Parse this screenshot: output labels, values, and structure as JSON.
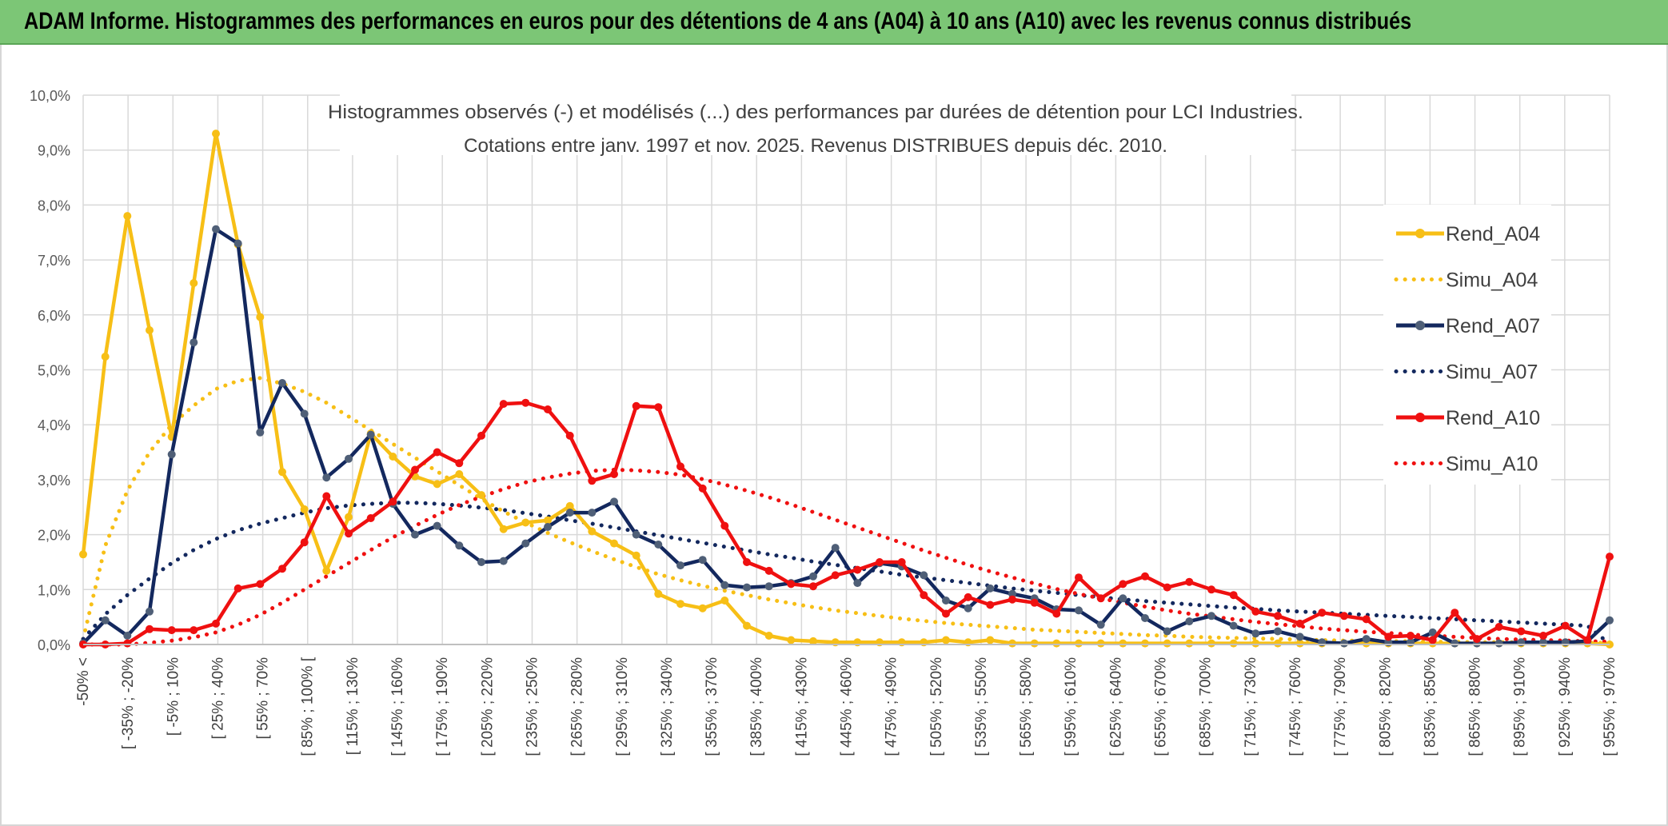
{
  "banner": {
    "title": "ADAM Informe. Histogrammes des performances en euros pour des détentions de 4 ans (A04) à 10 ans (A10) avec les revenus connus distribués"
  },
  "colors": {
    "A04": "#f7bf16",
    "A07": "#13285e",
    "A07_marker": "#4f5f77",
    "A10": "#ef1010",
    "grid": "#d9d9d9",
    "banner": "#7cc676"
  },
  "chart_data": {
    "type": "line",
    "title": "Histogrammes observés (-) et modélisés (...) des performances par durées de détention pour LCI Industries.",
    "subtitle": "Cotations entre janv. 1997 et nov. 2025. Revenus DISTRIBUES depuis déc. 2010.",
    "xlabel": "",
    "ylabel": "",
    "ylim": [
      0,
      0.1
    ],
    "y_ticks": [
      "0,0%",
      "1,0%",
      "2,0%",
      "3,0%",
      "4,0%",
      "5,0%",
      "6,0%",
      "7,0%",
      "8,0%",
      "9,0%",
      "10,0%"
    ],
    "legend_position": "right",
    "grid": true,
    "x_labels": [
      "-50% <",
      "[ -35% ; -20%",
      "[ -5% ; 10%",
      "[ 25% ; 40%",
      "[ 55% ; 70%",
      "[ 85% ; 100% [",
      "[ 115% ; 130%",
      "[ 145% ; 160%",
      "[ 175% ; 190%",
      "[ 205% ; 220%",
      "[ 235% ; 250%",
      "[ 265% ; 280%",
      "[ 295% ; 310%",
      "[ 325% ; 340%",
      "[ 355% ; 370%",
      "[ 385% ; 400%",
      "[ 415% ; 430%",
      "[ 445% ; 460%",
      "[ 475% ; 490%",
      "[ 505% ; 520%",
      "[ 535% ; 550%",
      "[ 565% ; 580%",
      "[ 595% ; 610%",
      "[ 625% ; 640%",
      "[ 655% ; 670%",
      "[ 685% ; 700%",
      "[ 715% ; 730%",
      "[ 745% ; 760%",
      "[ 775% ; 790%",
      "[ 805% ; 820%",
      "[ 835% ; 850%",
      "[ 865% ; 880%",
      "[ 895% ; 910%",
      "[ 925% ; 940%",
      "[ 955% ; 970%"
    ],
    "series": [
      {
        "name": "Rend_A04",
        "style": "solid",
        "color_key": "A04",
        "values": [
          0.0164,
          0.0524,
          0.078,
          0.0572,
          0.0378,
          0.0658,
          0.093,
          0.0728,
          0.0596,
          0.0314,
          0.0246,
          0.0134,
          0.0232,
          0.0384,
          0.0342,
          0.0306,
          0.0292,
          0.031,
          0.0272,
          0.021,
          0.0222,
          0.0226,
          0.0252,
          0.0206,
          0.0184,
          0.0162,
          0.0092,
          0.0074,
          0.0066,
          0.008,
          0.0034,
          0.0016,
          0.0008,
          0.0006,
          0.0004,
          0.0004,
          0.0004,
          0.0004,
          0.0004,
          0.0008,
          0.0004,
          0.0008,
          0.0002,
          0.0002,
          0.0002,
          0.0002,
          0.0002,
          0.0002,
          0.0002,
          0.0002,
          0.0002,
          0.0002,
          0.0002,
          0.0002,
          0.0002,
          0.0002,
          0.0002,
          0.0002,
          0.0002,
          0.0002,
          0.0002,
          0.0002,
          0.0002,
          0.0002,
          0.0002,
          0.0002,
          0.0002,
          0.0002,
          0.0002,
          0.0
        ]
      },
      {
        "name": "Simu_A04",
        "style": "dotted",
        "color_key": "A04",
        "values": [
          0.001,
          0.018,
          0.028,
          0.035,
          0.04,
          0.0435,
          0.0465,
          0.048,
          0.0485,
          0.0475,
          0.046,
          0.044,
          0.0415,
          0.039,
          0.0365,
          0.034,
          0.0315,
          0.029,
          0.0265,
          0.0242,
          0.0222,
          0.0203,
          0.0186,
          0.017,
          0.0155,
          0.0141,
          0.0128,
          0.0117,
          0.0107,
          0.0098,
          0.009,
          0.0082,
          0.0075,
          0.0068,
          0.0062,
          0.0057,
          0.0052,
          0.0047,
          0.0043,
          0.0039,
          0.0036,
          0.0033,
          0.003,
          0.0027,
          0.0025,
          0.0023,
          0.0021,
          0.0019,
          0.0017,
          0.0016,
          0.0014,
          0.0013,
          0.0012,
          0.0011,
          0.001,
          0.0009,
          0.0008,
          0.0007,
          0.0007,
          0.0006,
          0.0006,
          0.0005,
          0.0005,
          0.0004,
          0.0004,
          0.0004,
          0.0003,
          0.0003,
          0.0003,
          0.0003
        ]
      },
      {
        "name": "Rend_A07",
        "style": "solid",
        "color_key": "A07",
        "values": [
          0.0002,
          0.0044,
          0.0016,
          0.006,
          0.0346,
          0.055,
          0.0756,
          0.073,
          0.0386,
          0.0476,
          0.042,
          0.0304,
          0.0338,
          0.0382,
          0.0256,
          0.02,
          0.0216,
          0.018,
          0.015,
          0.0152,
          0.0184,
          0.0214,
          0.024,
          0.024,
          0.026,
          0.02,
          0.0182,
          0.0144,
          0.0154,
          0.0108,
          0.0104,
          0.0106,
          0.0112,
          0.0124,
          0.0176,
          0.0112,
          0.0148,
          0.0142,
          0.0126,
          0.008,
          0.0066,
          0.0102,
          0.0092,
          0.0084,
          0.0064,
          0.0062,
          0.0036,
          0.0084,
          0.0048,
          0.0024,
          0.0042,
          0.0052,
          0.0034,
          0.002,
          0.0024,
          0.0014,
          0.0004,
          0.0002,
          0.001,
          0.0004,
          0.0004,
          0.0022,
          0.0002,
          0.0002,
          0.0002,
          0.0004,
          0.0004,
          0.0004,
          0.0006,
          0.0044
        ]
      },
      {
        "name": "Simu_A07",
        "style": "dotted",
        "color_key": "A07",
        "values": [
          0.001,
          0.0055,
          0.009,
          0.012,
          0.0148,
          0.0172,
          0.0192,
          0.0208,
          0.022,
          0.023,
          0.024,
          0.0248,
          0.0253,
          0.0256,
          0.0258,
          0.0258,
          0.0256,
          0.0253,
          0.0249,
          0.0245,
          0.0239,
          0.0233,
          0.0226,
          0.022,
          0.0213,
          0.0206,
          0.0199,
          0.0192,
          0.0185,
          0.0178,
          0.0171,
          0.0164,
          0.0158,
          0.0151,
          0.0145,
          0.0139,
          0.0133,
          0.0127,
          0.0122,
          0.0117,
          0.0112,
          0.0107,
          0.0102,
          0.0098,
          0.0094,
          0.009,
          0.0086,
          0.0082,
          0.0079,
          0.0076,
          0.0073,
          0.007,
          0.0067,
          0.0065,
          0.0062,
          0.006,
          0.0058,
          0.0056,
          0.0054,
          0.0052,
          0.005,
          0.0048,
          0.0046,
          0.0044,
          0.0042,
          0.004,
          0.0038,
          0.0036,
          0.0034,
          0.0001
        ]
      },
      {
        "name": "Rend_A10",
        "style": "solid",
        "color_key": "A10",
        "values": [
          0.0,
          0.0,
          0.0002,
          0.0028,
          0.0026,
          0.0026,
          0.0038,
          0.0102,
          0.011,
          0.0138,
          0.0186,
          0.027,
          0.0202,
          0.023,
          0.026,
          0.0318,
          0.035,
          0.033,
          0.038,
          0.0438,
          0.044,
          0.0428,
          0.038,
          0.0298,
          0.031,
          0.0434,
          0.0432,
          0.0324,
          0.0284,
          0.0216,
          0.015,
          0.0134,
          0.011,
          0.0106,
          0.0126,
          0.0136,
          0.015,
          0.015,
          0.009,
          0.0056,
          0.0086,
          0.0072,
          0.0082,
          0.0076,
          0.0056,
          0.0122,
          0.0084,
          0.011,
          0.0124,
          0.0104,
          0.0114,
          0.01,
          0.009,
          0.006,
          0.0052,
          0.0038,
          0.0058,
          0.0052,
          0.0046,
          0.0014,
          0.0016,
          0.0008,
          0.0058,
          0.001,
          0.0032,
          0.0024,
          0.0016,
          0.0034,
          0.0008,
          0.016
        ]
      },
      {
        "name": "Simu_A10",
        "style": "dotted",
        "color_key": "A10",
        "values": [
          0.0,
          0.0,
          0.0,
          0.0003,
          0.0007,
          0.0013,
          0.0022,
          0.0036,
          0.0054,
          0.0076,
          0.01,
          0.0124,
          0.0148,
          0.0172,
          0.0195,
          0.0216,
          0.0236,
          0.0254,
          0.0269,
          0.0283,
          0.0295,
          0.0304,
          0.0311,
          0.0316,
          0.0318,
          0.0317,
          0.0314,
          0.0309,
          0.0301,
          0.0291,
          0.028,
          0.0268,
          0.0255,
          0.0241,
          0.0227,
          0.0213,
          0.0199,
          0.0185,
          0.0171,
          0.0158,
          0.0145,
          0.0133,
          0.0122,
          0.0111,
          0.0101,
          0.0092,
          0.0084,
          0.0076,
          0.0069,
          0.0062,
          0.0056,
          0.0051,
          0.0046,
          0.0041,
          0.0037,
          0.0033,
          0.0029,
          0.0026,
          0.0023,
          0.0021,
          0.0018,
          0.0016,
          0.0014,
          0.0012,
          0.001,
          0.0009,
          0.0008,
          0.0007,
          0.0006,
          0.0005
        ]
      }
    ]
  }
}
